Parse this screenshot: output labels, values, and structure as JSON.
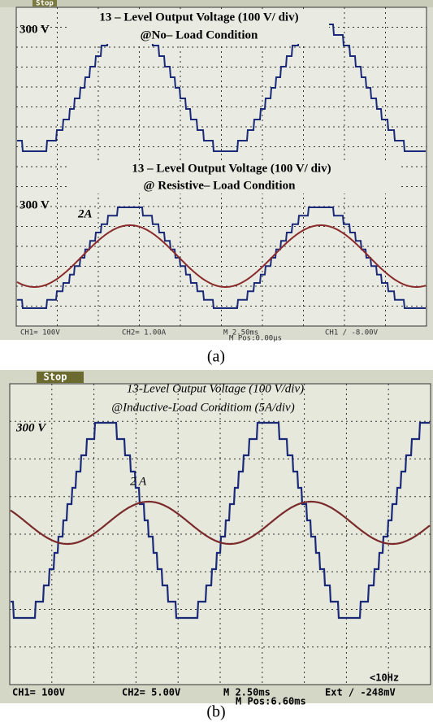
{
  "panel_a": {
    "status": "Stop",
    "title_1": "13 – Level Output Voltage (100 V/ div)",
    "subtitle_1": "@No– Load Condition",
    "voltage_label_1": "300 V",
    "title_2": "13 – Level Output Voltage (100 V/ div)",
    "subtitle_2": "@ Resistive– Load Condition",
    "voltage_label_2": "300 V",
    "current_label": "2A",
    "footer": [
      "CH1= 100V",
      "CH2= 1.00A",
      "M 2.50ms",
      "M Pos:0.00μs",
      "CH1 / -8.00V"
    ],
    "caption": "(a)"
  },
  "panel_b": {
    "status": "Stop",
    "title": "13-Level Output Voltage (100 V/div)",
    "subtitle": "@Inductive-Load Conditiom (5A/div)",
    "voltage_label": "300 V",
    "current_label": "2 A",
    "trigger": "<10Hz",
    "footer": [
      "CH1= 100V",
      "CH2= 5.00V",
      "M 2.50ms",
      "Ext / -248mV",
      "M Pos:6.60ms"
    ],
    "caption": "(b)"
  }
}
